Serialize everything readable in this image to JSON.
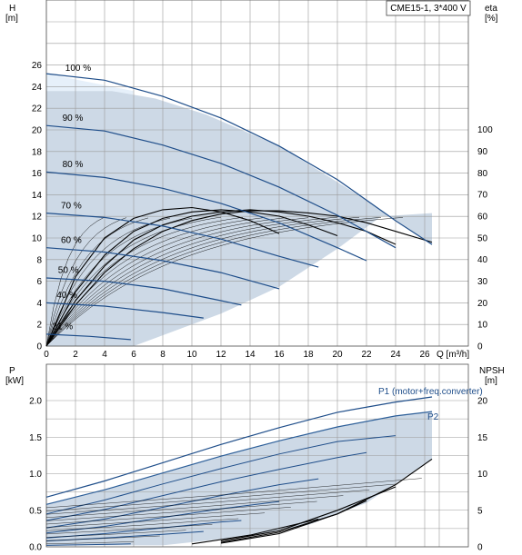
{
  "chart_data": [
    {
      "type": "line",
      "title": "CME15-1, 3*400 V",
      "xlabel": "Q [m³/h]",
      "ylabel_left": [
        "H",
        "[m]"
      ],
      "ylabel_right": [
        "eta",
        "[%]"
      ],
      "xlim": [
        0,
        27
      ],
      "ylim": [
        0,
        28
      ],
      "ylim_right": [
        0,
        117
      ],
      "x_ticks": [
        0,
        2,
        4,
        6,
        8,
        10,
        12,
        14,
        16,
        18,
        20,
        22,
        24,
        26
      ],
      "y_ticks": [
        0,
        2,
        4,
        6,
        8,
        10,
        12,
        14,
        16,
        18,
        20,
        22,
        24,
        26
      ],
      "y_right_ticks": [
        0,
        10,
        20,
        30,
        40,
        50,
        60,
        70,
        80,
        90,
        100
      ],
      "grid": true,
      "speed_labels": [
        {
          "text": "100 %",
          "x": 1.3,
          "y": 25.2
        },
        {
          "text": "90 %",
          "x": 1.1,
          "y": 20.6
        },
        {
          "text": "80 %",
          "x": 1.1,
          "y": 16.3
        },
        {
          "text": "70 %",
          "x": 1.0,
          "y": 12.5
        },
        {
          "text": "60 %",
          "x": 1.0,
          "y": 9.3
        },
        {
          "text": "50 %",
          "x": 0.8,
          "y": 6.5
        },
        {
          "text": "40 %",
          "x": 0.7,
          "y": 4.2
        },
        {
          "text": "21 %",
          "x": 0.4,
          "y": 1.3
        }
      ],
      "head_curves": [
        {
          "name": "100 %",
          "values": [
            [
              0,
              25.2
            ],
            [
              4,
              24.6
            ],
            [
              8,
              23.1
            ],
            [
              12,
              21.1
            ],
            [
              16,
              18.5
            ],
            [
              20,
              15.4
            ],
            [
              24,
              11.6
            ],
            [
              26.5,
              9.4
            ]
          ]
        },
        {
          "name": "90 %",
          "values": [
            [
              0,
              20.4
            ],
            [
              4,
              19.9
            ],
            [
              8,
              18.6
            ],
            [
              12,
              16.9
            ],
            [
              16,
              14.7
            ],
            [
              20,
              12.1
            ],
            [
              24,
              9.1
            ]
          ]
        },
        {
          "name": "80 %",
          "values": [
            [
              0,
              16.1
            ],
            [
              4,
              15.6
            ],
            [
              8,
              14.6
            ],
            [
              12,
              13.2
            ],
            [
              16,
              11.4
            ],
            [
              20,
              9.1
            ],
            [
              22,
              7.9
            ]
          ]
        },
        {
          "name": "70 %",
          "values": [
            [
              0,
              12.3
            ],
            [
              4,
              11.9
            ],
            [
              8,
              11.1
            ],
            [
              12,
              9.9
            ],
            [
              16,
              8.3
            ],
            [
              18.7,
              7.3
            ]
          ]
        },
        {
          "name": "60 %",
          "values": [
            [
              0,
              9.1
            ],
            [
              4,
              8.7
            ],
            [
              8,
              7.9
            ],
            [
              12,
              6.8
            ],
            [
              16,
              5.3
            ]
          ]
        },
        {
          "name": "50 %",
          "values": [
            [
              0,
              6.3
            ],
            [
              4,
              6.0
            ],
            [
              8,
              5.3
            ],
            [
              12,
              4.2
            ],
            [
              13.4,
              3.8
            ]
          ]
        },
        {
          "name": "40 %",
          "values": [
            [
              0,
              4.0
            ],
            [
              4,
              3.7
            ],
            [
              8,
              3.1
            ],
            [
              10.8,
              2.6
            ]
          ]
        },
        {
          "name": "21 %",
          "values": [
            [
              0,
              1.1
            ],
            [
              3,
              0.9
            ],
            [
              5.8,
              0.6
            ]
          ]
        }
      ],
      "eta_curves": [
        {
          "values": [
            [
              0,
              0
            ],
            [
              2,
              32
            ],
            [
              4,
              50
            ],
            [
              6,
              59
            ],
            [
              8,
              63
            ],
            [
              10,
              64
            ],
            [
              12,
              62
            ],
            [
              14,
              58
            ],
            [
              16,
              52
            ]
          ]
        },
        {
          "values": [
            [
              0,
              0
            ],
            [
              2,
              25
            ],
            [
              4,
              42
            ],
            [
              6,
              53
            ],
            [
              8,
              59
            ],
            [
              10,
              62
            ],
            [
              12,
              63
            ],
            [
              14,
              62
            ],
            [
              16,
              60
            ],
            [
              18,
              56
            ],
            [
              20,
              51
            ]
          ]
        },
        {
          "values": [
            [
              0,
              0
            ],
            [
              2,
              21
            ],
            [
              4,
              37
            ],
            [
              6,
              49
            ],
            [
              8,
              56
            ],
            [
              10,
              60
            ],
            [
              12,
              62
            ],
            [
              14,
              63
            ],
            [
              16,
              62
            ],
            [
              18,
              60
            ],
            [
              20,
              57
            ],
            [
              22,
              53
            ],
            [
              24,
              47
            ]
          ]
        },
        {
          "values": [
            [
              0,
              0
            ],
            [
              2,
              19
            ],
            [
              4,
              34
            ],
            [
              6,
              45
            ],
            [
              8,
              53
            ],
            [
              10,
              58
            ],
            [
              12,
              61
            ],
            [
              14,
              62.5
            ],
            [
              16,
              62.5
            ],
            [
              18,
              61.5
            ],
            [
              20,
              60
            ],
            [
              22,
              57
            ],
            [
              24,
              53
            ],
            [
              26.5,
              48
            ]
          ]
        }
      ],
      "envelope_polygon": [
        [
          0,
          0
        ],
        [
          6,
          0
        ],
        [
          8,
          1
        ],
        [
          12,
          3
        ],
        [
          16,
          5.5
        ],
        [
          20,
          9
        ],
        [
          23,
          12
        ],
        [
          26.5,
          12.3
        ],
        [
          26.5,
          9.4
        ],
        [
          22,
          13.5
        ],
        [
          16,
          18.5
        ],
        [
          11,
          21.4
        ],
        [
          7.5,
          22.9
        ],
        [
          4.5,
          23.6
        ],
        [
          0,
          23.6
        ]
      ]
    },
    {
      "type": "line",
      "xlabel": "",
      "ylabel_left": [
        "P",
        "[kW]"
      ],
      "ylabel_right": [
        "NPSH",
        "[m]"
      ],
      "xlim": [
        0,
        27
      ],
      "ylim": [
        0,
        2.2
      ],
      "ylim_right": [
        0,
        22
      ],
      "y_ticks": [
        0.0,
        0.5,
        1.0,
        1.5,
        2.0
      ],
      "y_right_ticks": [
        0,
        5,
        10,
        15,
        20
      ],
      "grid": true,
      "series": [
        {
          "name": "P1 (motor+freq.converter)",
          "values": [
            [
              0,
              0.68
            ],
            [
              4,
              0.9
            ],
            [
              8,
              1.15
            ],
            [
              12,
              1.4
            ],
            [
              16,
              1.63
            ],
            [
              20,
              1.84
            ],
            [
              24,
              1.98
            ],
            [
              26.5,
              2.05
            ]
          ]
        },
        {
          "name": "P2",
          "values": [
            [
              0,
              0.58
            ],
            [
              4,
              0.78
            ],
            [
              8,
              1.01
            ],
            [
              12,
              1.24
            ],
            [
              16,
              1.45
            ],
            [
              20,
              1.64
            ],
            [
              24,
              1.79
            ],
            [
              26.5,
              1.85
            ]
          ]
        },
        {
          "name": "",
          "values": [
            [
              0,
              0.45
            ],
            [
              4,
              0.64
            ],
            [
              8,
              0.86
            ],
            [
              12,
              1.07
            ],
            [
              16,
              1.27
            ],
            [
              20,
              1.44
            ],
            [
              24,
              1.52
            ]
          ]
        },
        {
          "name": "",
          "values": [
            [
              0,
              0.36
            ],
            [
              4,
              0.51
            ],
            [
              8,
              0.7
            ],
            [
              12,
              0.89
            ],
            [
              16,
              1.06
            ],
            [
              20,
              1.22
            ],
            [
              22,
              1.29
            ]
          ]
        },
        {
          "name": "",
          "values": [
            [
              0,
              0.26
            ],
            [
              4,
              0.38
            ],
            [
              8,
              0.54
            ],
            [
              12,
              0.7
            ],
            [
              16,
              0.85
            ],
            [
              18.7,
              0.93
            ]
          ]
        },
        {
          "name": "",
          "values": [
            [
              0,
              0.19
            ],
            [
              4,
              0.28
            ],
            [
              8,
              0.4
            ],
            [
              12,
              0.52
            ],
            [
              16,
              0.62
            ]
          ]
        },
        {
          "name": "",
          "values": [
            [
              0,
              0.12
            ],
            [
              4,
              0.18
            ],
            [
              8,
              0.26
            ],
            [
              12,
              0.34
            ],
            [
              13.4,
              0.36
            ]
          ]
        },
        {
          "name": "",
          "values": [
            [
              0,
              0.08
            ],
            [
              4,
              0.12
            ],
            [
              8,
              0.17
            ],
            [
              10.8,
              0.21
            ]
          ]
        },
        {
          "name": "",
          "values": [
            [
              0,
              0.02
            ],
            [
              3,
              0.03
            ],
            [
              5.8,
              0.04
            ]
          ]
        }
      ],
      "npsh_curves": [
        {
          "values": [
            [
              12,
              0.5
            ],
            [
              16,
              1.8
            ],
            [
              20,
              4.5
            ],
            [
              24,
              8.5
            ],
            [
              26.5,
              12.0
            ]
          ]
        },
        {
          "values": [
            [
              12,
              0.8
            ],
            [
              16,
              2.2
            ],
            [
              20,
              5.0
            ],
            [
              24,
              8.2
            ]
          ]
        },
        {
          "values": [
            [
              12,
              0.6
            ],
            [
              16,
              2.0
            ],
            [
              20,
              4.5
            ],
            [
              22,
              6.3
            ]
          ]
        },
        {
          "values": [
            [
              10,
              0.4
            ],
            [
              14,
              1.6
            ],
            [
              18.7,
              3.8
            ]
          ]
        }
      ],
      "envelope_polygon": [
        [
          0,
          0.58
        ],
        [
          4,
          0.78
        ],
        [
          8,
          1.01
        ],
        [
          12,
          1.24
        ],
        [
          16,
          1.45
        ],
        [
          20,
          1.64
        ],
        [
          24,
          1.79
        ],
        [
          26.5,
          1.85
        ],
        [
          26.5,
          1.2
        ],
        [
          22,
          0.6
        ],
        [
          18,
          0.3
        ],
        [
          14,
          0.15
        ],
        [
          8,
          0.02
        ],
        [
          0,
          0.02
        ]
      ]
    }
  ]
}
